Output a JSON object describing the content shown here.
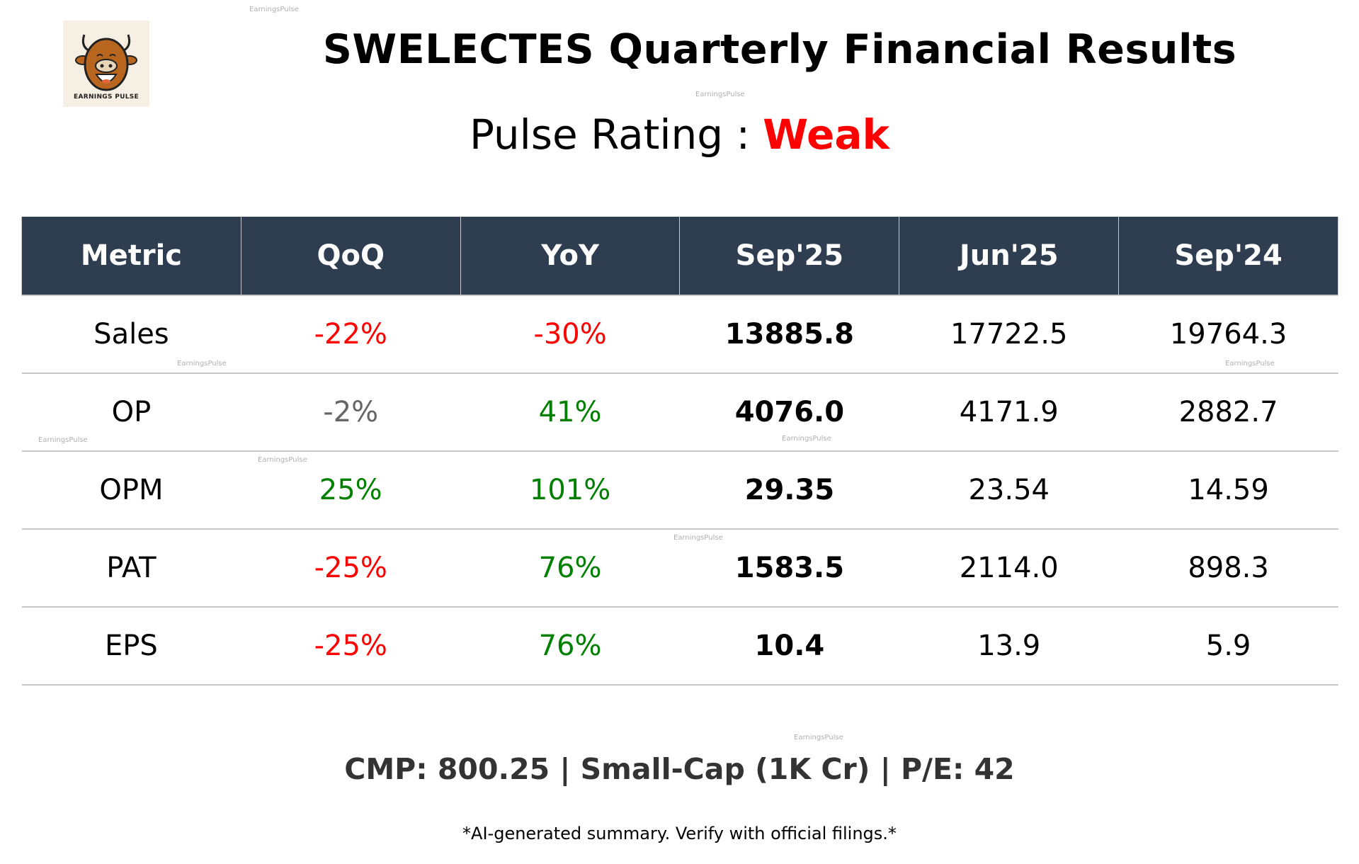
{
  "logo": {
    "text": "EARNINGS PULSE"
  },
  "title": "SWELECTES Quarterly Financial Results",
  "pulse_rating": {
    "label": "Pulse Rating :",
    "value": "Weak",
    "color": "#ff0000"
  },
  "table": {
    "header_bg": "#2e3e50",
    "columns": [
      "Metric",
      "QoQ",
      "YoY",
      "Sep'25",
      "Jun'25",
      "Sep'24"
    ],
    "rows": [
      {
        "metric": "Sales",
        "qoq": "-22%",
        "qoq_color": "#ff0000",
        "yoy": "-30%",
        "yoy_color": "#ff0000",
        "sep25": "13885.8",
        "jun25": "17722.5",
        "sep24": "19764.3"
      },
      {
        "metric": "OP",
        "qoq": "-2%",
        "qoq_color": "#666666",
        "yoy": "41%",
        "yoy_color": "#008000",
        "sep25": "4076.0",
        "jun25": "4171.9",
        "sep24": "2882.7"
      },
      {
        "metric": "OPM",
        "qoq": "25%",
        "qoq_color": "#008000",
        "yoy": "101%",
        "yoy_color": "#008000",
        "sep25": "29.35",
        "jun25": "23.54",
        "sep24": "14.59"
      },
      {
        "metric": "PAT",
        "qoq": "-25%",
        "qoq_color": "#ff0000",
        "yoy": "76%",
        "yoy_color": "#008000",
        "sep25": "1583.5",
        "jun25": "2114.0",
        "sep24": "898.3"
      },
      {
        "metric": "EPS",
        "qoq": "-25%",
        "qoq_color": "#ff0000",
        "yoy": "76%",
        "yoy_color": "#008000",
        "sep25": "10.4",
        "jun25": "13.9",
        "sep24": "5.9"
      }
    ]
  },
  "summary": "CMP: 800.25 | Small-Cap (1K Cr) | P/E: 42",
  "disclaimer": "*AI-generated summary. Verify with official filings.*",
  "watermark": "EarningsPulse"
}
